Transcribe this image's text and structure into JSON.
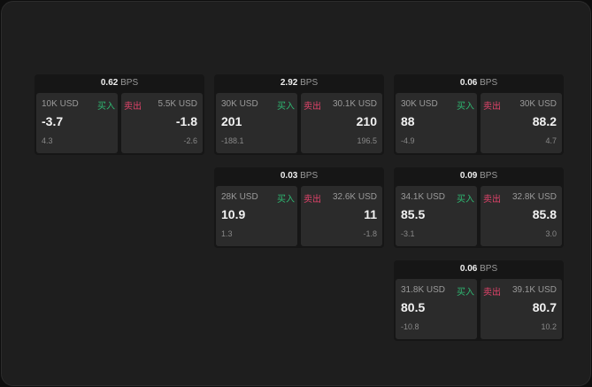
{
  "unit": "BPS",
  "buy_label": "买入",
  "sell_label": "卖出",
  "colors": {
    "buy": "#2eb872",
    "sell": "#e0436a"
  },
  "cards": [
    {
      "spread": "0.62",
      "buy": {
        "qty": "10K USD",
        "price": "-3.7",
        "change": "4.3"
      },
      "sell": {
        "qty": "5.5K USD",
        "price": "-1.8",
        "change": "-2.6"
      }
    },
    {
      "spread": "2.92",
      "buy": {
        "qty": "30K USD",
        "price": "201",
        "change": "-188.1"
      },
      "sell": {
        "qty": "30.1K USD",
        "price": "210",
        "change": "196.5"
      }
    },
    {
      "spread": "0.06",
      "buy": {
        "qty": "30K USD",
        "price": "88",
        "change": "-4.9"
      },
      "sell": {
        "qty": "30K USD",
        "price": "88.2",
        "change": "4.7"
      }
    },
    {
      "spread": "0.03",
      "buy": {
        "qty": "28K USD",
        "price": "10.9",
        "change": "1.3"
      },
      "sell": {
        "qty": "32.6K USD",
        "price": "11",
        "change": "-1.8"
      }
    },
    {
      "spread": "0.09",
      "buy": {
        "qty": "34.1K USD",
        "price": "85.5",
        "change": "-3.1"
      },
      "sell": {
        "qty": "32.8K USD",
        "price": "85.8",
        "change": "3.0"
      }
    },
    {
      "spread": "0.06",
      "buy": {
        "qty": "31.8K USD",
        "price": "80.5",
        "change": "-10.8"
      },
      "sell": {
        "qty": "39.1K USD",
        "price": "80.7",
        "change": "10.2"
      }
    }
  ]
}
